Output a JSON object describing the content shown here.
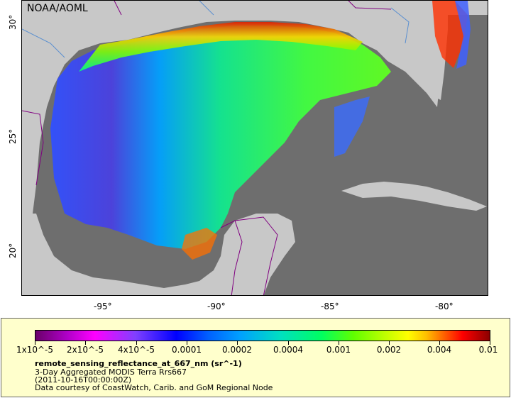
{
  "map": {
    "credit": "NOAA/AOML",
    "y_ticks": [
      "30°",
      "25°",
      "20°"
    ],
    "x_ticks": [
      "-95°",
      "-90°",
      "-85°",
      "-80°"
    ],
    "colors": {
      "ocean_nodata": "#6e6e6e",
      "land": "#c8c8c8",
      "borders": "#800080",
      "rivers": "#5a8fd0"
    }
  },
  "legend": {
    "colorbar_ticks": [
      "1x10^-5",
      "2x10^-5",
      "4x10^-5",
      "0.0001",
      "0.0002",
      "0.0004",
      "0.001",
      "0.002",
      "0.004",
      "0.01"
    ],
    "variable": "remote_sensing_reflectance_at_667_nm (sr^-1)",
    "description": "3-Day Aggregated MODIS Terra Rrs667",
    "time": "(2011-10-16T00:00:00Z)",
    "courtesy": "Data courtesy of CoastWatch, Carib. and GoM Regional Node"
  }
}
